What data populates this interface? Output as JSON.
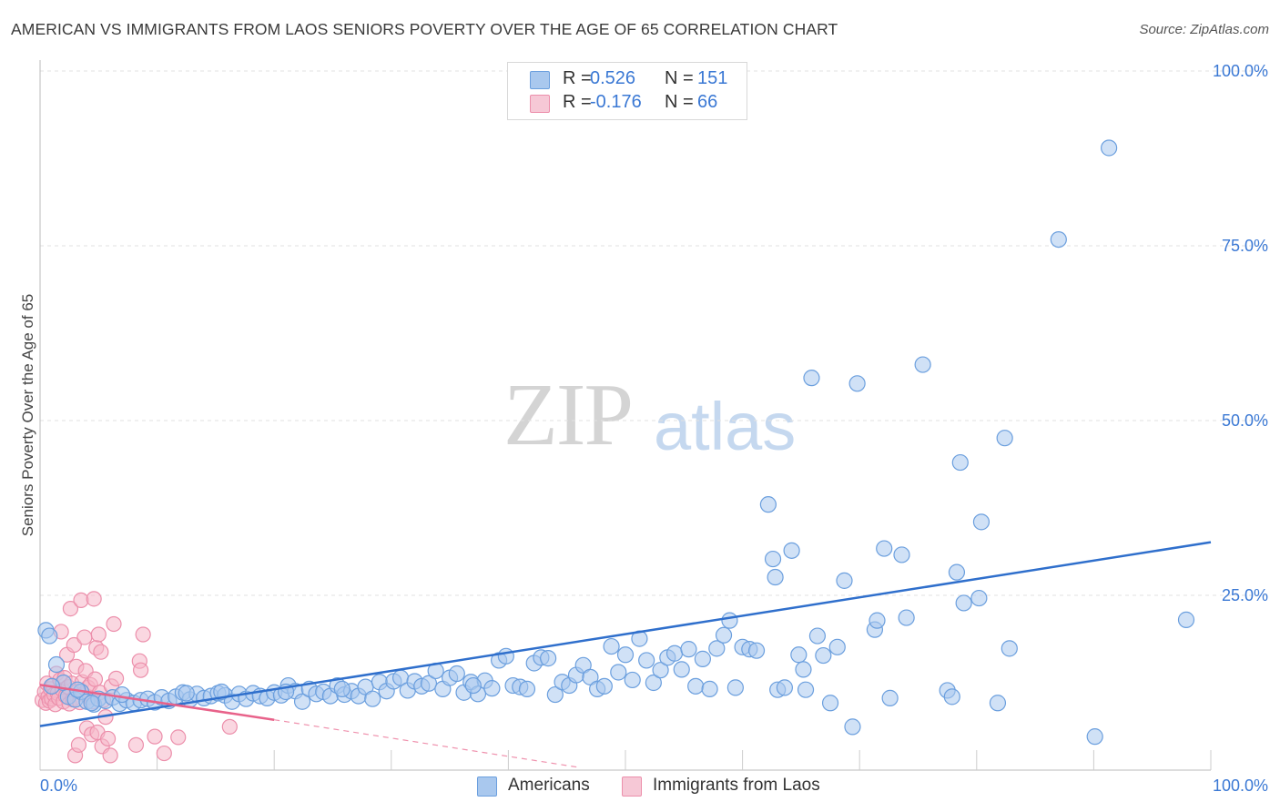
{
  "header": {
    "title": "AMERICAN VS IMMIGRANTS FROM LAOS SENIORS POVERTY OVER THE AGE OF 65 CORRELATION CHART",
    "source": "Source: ZipAtlas.com"
  },
  "watermark": {
    "zip": "ZIP",
    "atlas": "atlas"
  },
  "legend": {
    "rows": [
      {
        "r_label": "R =",
        "r_value": "0.526",
        "n_label": "N =",
        "n_value": "151",
        "color": "#a9c8ee"
      },
      {
        "r_label": "R =",
        "r_value": "-0.176",
        "n_label": "N =",
        "n_value": "66",
        "color": "#f6b6c8"
      }
    ]
  },
  "bottom_legend": {
    "americans": "Americans",
    "laos": "Immigrants from Laos"
  },
  "colors": {
    "americans_fill": "#a9c8ee",
    "americans_stroke": "#6b9fde",
    "americans_line": "#2f6fcc",
    "laos_fill": "#f6b6c8",
    "laos_stroke": "#ec8fab",
    "laos_line": "#e8628a",
    "axis_text": "#3a78d4",
    "grid": "#e2e2e2"
  },
  "chart_data": {
    "type": "scatter",
    "title": "AMERICAN VS IMMIGRANTS FROM LAOS SENIORS POVERTY OVER THE AGE OF 65 CORRELATION CHART",
    "xlabel": "",
    "ylabel": "Seniors Poverty Over the Age of 65",
    "xlim": [
      0,
      100
    ],
    "ylim": [
      0,
      100
    ],
    "x_tick_labels": [
      "0.0%",
      "100.0%"
    ],
    "y_tick_labels": [
      "25.0%",
      "50.0%",
      "75.0%",
      "100.0%"
    ],
    "y_ticks": [
      25,
      50,
      75,
      100
    ],
    "grid": true,
    "legend_position": "top-center",
    "series": [
      {
        "name": "Americans",
        "trend": {
          "x": [
            0,
            100
          ],
          "y": [
            6.3,
            32.6
          ]
        },
        "points": [
          [
            0.5,
            20.0
          ],
          [
            0.8,
            19.2
          ],
          [
            1.4,
            15.1
          ],
          [
            2.0,
            12.5
          ],
          [
            2.4,
            10.5
          ],
          [
            3.0,
            10.1
          ],
          [
            3.5,
            11.2
          ],
          [
            4.0,
            9.8
          ],
          [
            4.6,
            9.4
          ],
          [
            5.0,
            10.2
          ],
          [
            5.6,
            9.9
          ],
          [
            6.2,
            10.4
          ],
          [
            6.8,
            9.5
          ],
          [
            7.4,
            10.0
          ],
          [
            8.0,
            9.6
          ],
          [
            8.6,
            10.0
          ],
          [
            9.2,
            10.2
          ],
          [
            9.8,
            9.7
          ],
          [
            10.4,
            10.4
          ],
          [
            11.0,
            9.9
          ],
          [
            11.6,
            10.5
          ],
          [
            12.2,
            11.1
          ],
          [
            12.8,
            10.1
          ],
          [
            13.4,
            10.9
          ],
          [
            14.0,
            10.3
          ],
          [
            14.6,
            10.6
          ],
          [
            15.2,
            11.0
          ],
          [
            15.8,
            10.7
          ],
          [
            16.4,
            9.8
          ],
          [
            17.0,
            10.9
          ],
          [
            17.6,
            10.2
          ],
          [
            18.2,
            11.0
          ],
          [
            18.8,
            10.6
          ],
          [
            19.4,
            10.3
          ],
          [
            20.0,
            11.1
          ],
          [
            20.6,
            10.7
          ],
          [
            21.2,
            12.1
          ],
          [
            21.8,
            11.3
          ],
          [
            22.4,
            9.8
          ],
          [
            23.0,
            11.6
          ],
          [
            23.6,
            10.9
          ],
          [
            24.2,
            11.2
          ],
          [
            24.8,
            10.6
          ],
          [
            25.4,
            12.1
          ],
          [
            26.0,
            10.8
          ],
          [
            26.6,
            11.3
          ],
          [
            27.2,
            10.6
          ],
          [
            27.8,
            11.9
          ],
          [
            28.4,
            10.2
          ],
          [
            29.0,
            12.6
          ],
          [
            29.6,
            11.3
          ],
          [
            30.2,
            12.7
          ],
          [
            30.8,
            13.2
          ],
          [
            31.4,
            11.4
          ],
          [
            32.0,
            12.7
          ],
          [
            32.6,
            12.0
          ],
          [
            33.2,
            12.4
          ],
          [
            33.8,
            14.2
          ],
          [
            34.4,
            11.6
          ],
          [
            35.0,
            13.2
          ],
          [
            35.6,
            13.8
          ],
          [
            36.2,
            11.1
          ],
          [
            36.8,
            12.6
          ],
          [
            37.4,
            10.9
          ],
          [
            38.0,
            12.8
          ],
          [
            38.6,
            11.7
          ],
          [
            39.2,
            15.7
          ],
          [
            39.8,
            16.3
          ],
          [
            40.4,
            12.1
          ],
          [
            41.0,
            11.9
          ],
          [
            41.6,
            11.6
          ],
          [
            42.2,
            15.3
          ],
          [
            42.8,
            16.1
          ],
          [
            43.4,
            16.0
          ],
          [
            44.0,
            10.8
          ],
          [
            44.6,
            12.6
          ],
          [
            45.2,
            12.1
          ],
          [
            45.8,
            13.6
          ],
          [
            46.4,
            15.0
          ],
          [
            47.0,
            13.3
          ],
          [
            47.6,
            11.6
          ],
          [
            48.2,
            12.0
          ],
          [
            48.8,
            17.7
          ],
          [
            49.4,
            14.0
          ],
          [
            50.0,
            16.5
          ],
          [
            50.6,
            12.9
          ],
          [
            51.2,
            18.8
          ],
          [
            51.8,
            15.7
          ],
          [
            52.4,
            12.5
          ],
          [
            53.0,
            14.3
          ],
          [
            53.6,
            16.1
          ],
          [
            54.2,
            16.7
          ],
          [
            54.8,
            14.4
          ],
          [
            55.4,
            17.3
          ],
          [
            56.0,
            12.0
          ],
          [
            56.6,
            15.9
          ],
          [
            57.2,
            11.6
          ],
          [
            57.8,
            17.4
          ],
          [
            58.4,
            19.3
          ],
          [
            58.9,
            21.4
          ],
          [
            59.4,
            11.8
          ],
          [
            60.0,
            17.6
          ],
          [
            60.6,
            17.3
          ],
          [
            61.2,
            17.1
          ],
          [
            62.2,
            38.0
          ],
          [
            62.6,
            30.2
          ],
          [
            62.8,
            27.6
          ],
          [
            63.0,
            11.5
          ],
          [
            63.6,
            11.8
          ],
          [
            64.2,
            31.4
          ],
          [
            64.8,
            16.5
          ],
          [
            65.2,
            14.4
          ],
          [
            65.4,
            11.5
          ],
          [
            65.9,
            56.1
          ],
          [
            66.4,
            19.2
          ],
          [
            66.9,
            16.4
          ],
          [
            67.5,
            9.6
          ],
          [
            68.1,
            17.6
          ],
          [
            68.7,
            27.1
          ],
          [
            69.4,
            6.2
          ],
          [
            69.8,
            55.3
          ],
          [
            71.3,
            20.1
          ],
          [
            71.5,
            21.4
          ],
          [
            72.1,
            31.7
          ],
          [
            72.6,
            10.3
          ],
          [
            73.6,
            30.8
          ],
          [
            74.0,
            21.8
          ],
          [
            75.4,
            58.0
          ],
          [
            77.5,
            11.4
          ],
          [
            77.9,
            10.5
          ],
          [
            78.3,
            28.3
          ],
          [
            78.6,
            44.0
          ],
          [
            78.9,
            23.9
          ],
          [
            80.2,
            24.6
          ],
          [
            80.4,
            35.5
          ],
          [
            81.8,
            9.6
          ],
          [
            82.4,
            47.5
          ],
          [
            82.8,
            17.4
          ],
          [
            87.0,
            75.9
          ],
          [
            90.1,
            4.8
          ],
          [
            91.3,
            89.0
          ],
          [
            97.9,
            21.5
          ],
          [
            1.0,
            12.0
          ],
          [
            3.2,
            11.5
          ],
          [
            4.4,
            9.6
          ],
          [
            7.0,
            10.8
          ],
          [
            12.5,
            11.0
          ],
          [
            15.5,
            11.2
          ],
          [
            21.0,
            11.2
          ],
          [
            25.8,
            11.6
          ],
          [
            37.0,
            12.1
          ]
        ]
      },
      {
        "name": "Immigrants from Laos",
        "trend": {
          "x": [
            0,
            20
          ],
          "y": [
            12.2,
            7.2
          ]
        },
        "trend_dashed": {
          "x": [
            20,
            46
          ],
          "y": [
            7.2,
            0.4
          ]
        },
        "points": [
          [
            0.2,
            10.0
          ],
          [
            0.4,
            11.2
          ],
          [
            0.5,
            9.6
          ],
          [
            0.6,
            12.4
          ],
          [
            0.7,
            10.5
          ],
          [
            0.8,
            9.9
          ],
          [
            0.9,
            11.6
          ],
          [
            1.0,
            10.2
          ],
          [
            1.1,
            12.1
          ],
          [
            1.2,
            10.8
          ],
          [
            1.3,
            9.4
          ],
          [
            1.4,
            13.8
          ],
          [
            1.5,
            11.0
          ],
          [
            1.6,
            10.3
          ],
          [
            1.7,
            12.9
          ],
          [
            1.8,
            19.8
          ],
          [
            1.9,
            11.5
          ],
          [
            2.0,
            9.8
          ],
          [
            2.1,
            13.2
          ],
          [
            2.2,
            10.6
          ],
          [
            2.3,
            16.5
          ],
          [
            2.4,
            11.9
          ],
          [
            2.5,
            9.5
          ],
          [
            2.6,
            23.1
          ],
          [
            2.7,
            12.4
          ],
          [
            2.8,
            10.1
          ],
          [
            2.9,
            17.9
          ],
          [
            3.0,
            2.1
          ],
          [
            3.1,
            14.8
          ],
          [
            3.2,
            11.3
          ],
          [
            3.3,
            3.6
          ],
          [
            3.4,
            9.7
          ],
          [
            3.5,
            24.3
          ],
          [
            3.6,
            12.6
          ],
          [
            3.7,
            10.9
          ],
          [
            3.8,
            19.0
          ],
          [
            3.9,
            14.2
          ],
          [
            4.0,
            6.0
          ],
          [
            4.1,
            11.8
          ],
          [
            4.2,
            10.4
          ],
          [
            4.3,
            12.2
          ],
          [
            4.4,
            5.1
          ],
          [
            4.5,
            9.8
          ],
          [
            4.6,
            24.5
          ],
          [
            4.7,
            13.0
          ],
          [
            4.8,
            17.5
          ],
          [
            4.9,
            5.4
          ],
          [
            5.0,
            19.4
          ],
          [
            5.1,
            11.1
          ],
          [
            5.2,
            16.9
          ],
          [
            5.3,
            3.4
          ],
          [
            5.4,
            10.0
          ],
          [
            5.6,
            7.6
          ],
          [
            5.8,
            4.5
          ],
          [
            6.0,
            2.1
          ],
          [
            6.1,
            12.0
          ],
          [
            6.3,
            20.9
          ],
          [
            6.5,
            13.1
          ],
          [
            8.2,
            3.6
          ],
          [
            8.5,
            15.6
          ],
          [
            8.6,
            14.3
          ],
          [
            8.8,
            19.4
          ],
          [
            9.8,
            4.8
          ],
          [
            10.6,
            2.4
          ],
          [
            11.8,
            4.7
          ],
          [
            16.2,
            6.2
          ]
        ]
      }
    ]
  }
}
